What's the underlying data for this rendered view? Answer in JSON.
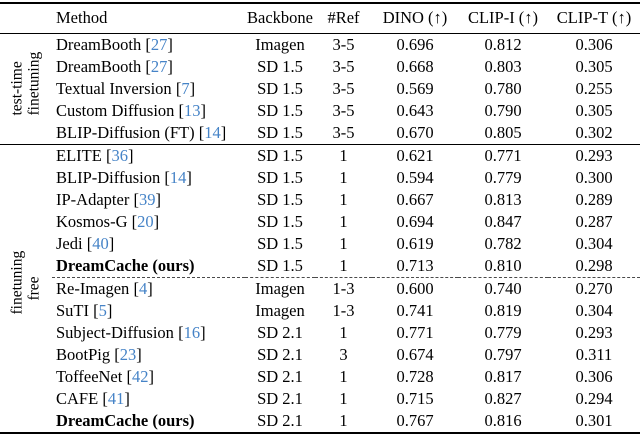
{
  "citation_color": "#4583c7",
  "table": {
    "headers": [
      "Method",
      "Backbone",
      "#Ref",
      "DINO (↑)",
      "CLIP-I (↑)",
      "CLIP-T (↑)"
    ],
    "groups": [
      {
        "label_lines": [
          "test-time",
          "finetuning"
        ],
        "rows": [
          {
            "method": "DreamBooth",
            "cite": "27",
            "backbone": "Imagen",
            "ref": "3-5",
            "dino": "0.696",
            "clip_i": "0.812",
            "clip_t": "0.306"
          },
          {
            "method": "DreamBooth",
            "cite": "27",
            "backbone": "SD 1.5",
            "ref": "3-5",
            "dino": "0.668",
            "clip_i": "0.803",
            "clip_t": "0.305"
          },
          {
            "method": "Textual Inversion",
            "cite": "7",
            "backbone": "SD 1.5",
            "ref": "3-5",
            "dino": "0.569",
            "clip_i": "0.780",
            "clip_t": "0.255"
          },
          {
            "method": "Custom Diffusion",
            "cite": "13",
            "backbone": "SD 1.5",
            "ref": "3-5",
            "dino": "0.643",
            "clip_i": "0.790",
            "clip_t": "0.305"
          },
          {
            "method": "BLIP-Diffusion (FT)",
            "cite": "14",
            "backbone": "SD 1.5",
            "ref": "3-5",
            "dino": "0.670",
            "clip_i": "0.805",
            "clip_t": "0.302"
          }
        ]
      },
      {
        "label_lines": [
          "finetuning",
          "free"
        ],
        "rows": [
          {
            "method": "ELITE",
            "cite": "36",
            "backbone": "SD 1.5",
            "ref": "1",
            "dino": "0.621",
            "clip_i": "0.771",
            "clip_t": "0.293"
          },
          {
            "method": "BLIP-Diffusion",
            "cite": "14",
            "backbone": "SD 1.5",
            "ref": "1",
            "dino": "0.594",
            "clip_i": "0.779",
            "clip_t": "0.300"
          },
          {
            "method": "IP-Adapter",
            "cite": "39",
            "backbone": "SD 1.5",
            "ref": "1",
            "dino": "0.667",
            "clip_i": "0.813",
            "clip_t": "0.289"
          },
          {
            "method": "Kosmos-G",
            "cite": "20",
            "backbone": "SD 1.5",
            "ref": "1",
            "dino": "0.694",
            "clip_i": "0.847",
            "clip_t": "0.287"
          },
          {
            "method": "Jedi",
            "cite": "40",
            "backbone": "SD 1.5",
            "ref": "1",
            "dino": "0.619",
            "clip_i": "0.782",
            "clip_t": "0.304"
          },
          {
            "method": "DreamCache (ours)",
            "cite": null,
            "bold": true,
            "backbone": "SD 1.5",
            "ref": "1",
            "dino": "0.713",
            "clip_i": "0.810",
            "clip_t": "0.298"
          },
          {
            "method": "Re-Imagen",
            "cite": "4",
            "dashed_before": true,
            "backbone": "Imagen",
            "ref": "1-3",
            "dino": "0.600",
            "clip_i": "0.740",
            "clip_t": "0.270"
          },
          {
            "method": "SuTI",
            "cite": "5",
            "backbone": "Imagen",
            "ref": "1-3",
            "dino": "0.741",
            "clip_i": "0.819",
            "clip_t": "0.304"
          },
          {
            "method": "Subject-Diffusion",
            "cite": "16",
            "backbone": "SD 2.1",
            "ref": "1",
            "dino": "0.771",
            "clip_i": "0.779",
            "clip_t": "0.293"
          },
          {
            "method": "BootPig",
            "cite": "23",
            "backbone": "SD 2.1",
            "ref": "3",
            "dino": "0.674",
            "clip_i": "0.797",
            "clip_t": "0.311"
          },
          {
            "method": "ToffeeNet",
            "cite": "42",
            "backbone": "SD 2.1",
            "ref": "1",
            "dino": "0.728",
            "clip_i": "0.817",
            "clip_t": "0.306"
          },
          {
            "method": "CAFE",
            "cite": "41",
            "backbone": "SD 2.1",
            "ref": "1",
            "dino": "0.715",
            "clip_i": "0.827",
            "clip_t": "0.294"
          },
          {
            "method": "DreamCache (ours)",
            "cite": null,
            "bold": true,
            "backbone": "SD 2.1",
            "ref": "1",
            "dino": "0.767",
            "clip_i": "0.816",
            "clip_t": "0.301"
          }
        ]
      }
    ]
  }
}
